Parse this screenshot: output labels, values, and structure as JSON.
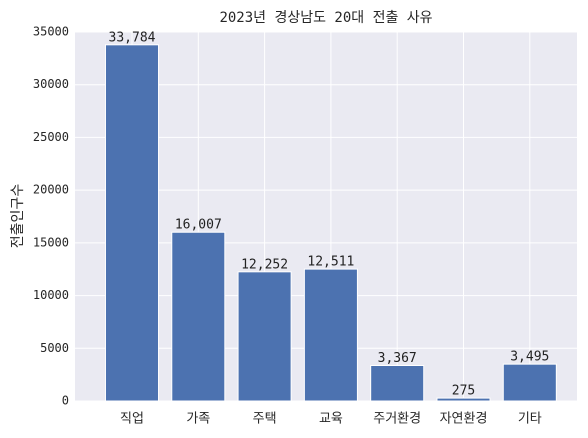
{
  "chart_data": {
    "type": "bar",
    "title": "2023년 경상남도 20대 전출 사유",
    "ylabel": "전출인구수",
    "categories": [
      "직업",
      "가족",
      "주택",
      "교육",
      "주거환경",
      "자연환경",
      "기타"
    ],
    "values": [
      33784,
      16007,
      12252,
      12511,
      3367,
      275,
      3495
    ],
    "value_labels": [
      "33,784",
      "16,007",
      "12,252",
      "12,511",
      "3,367",
      "275",
      "3,495"
    ],
    "color": "#4c72b0",
    "ylim": [
      0,
      35000
    ],
    "yticks": [
      0,
      5000,
      10000,
      15000,
      20000,
      25000,
      30000,
      35000
    ],
    "grid": true
  }
}
